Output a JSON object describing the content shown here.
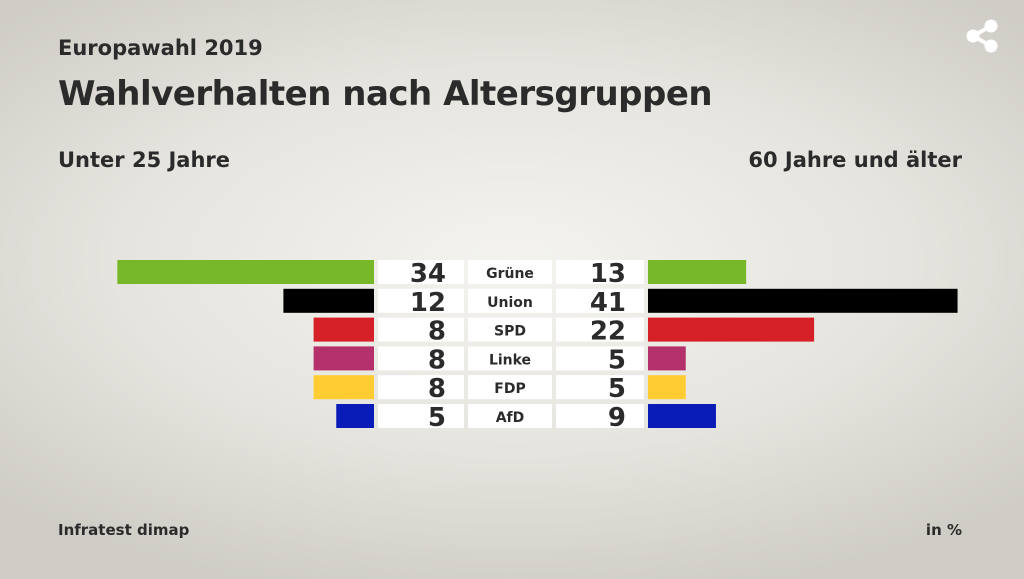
{
  "header": {
    "supertitle": "Europawahl 2019",
    "title": "Wahlverhalten nach Altersgruppen"
  },
  "footer": {
    "source": "Infratest dimap",
    "unit": "in %"
  },
  "share_icon": "share-icon",
  "chart_data": {
    "type": "bar",
    "orientation": "horizontal-butterfly",
    "title": "Wahlverhalten nach Altersgruppen",
    "categories": [
      "Grüne",
      "Union",
      "SPD",
      "Linke",
      "FDP",
      "AfD"
    ],
    "colors": [
      "#76b82a",
      "#000000",
      "#d52027",
      "#b5316b",
      "#ffcc33",
      "#0a1cb8"
    ],
    "series": [
      {
        "name": "Unter 25 Jahre",
        "side": "left",
        "values": [
          34,
          12,
          8,
          8,
          8,
          5
        ]
      },
      {
        "name": "60 Jahre und älter",
        "side": "right",
        "values": [
          13,
          41,
          22,
          5,
          5,
          9
        ]
      }
    ],
    "unit": "in %"
  }
}
